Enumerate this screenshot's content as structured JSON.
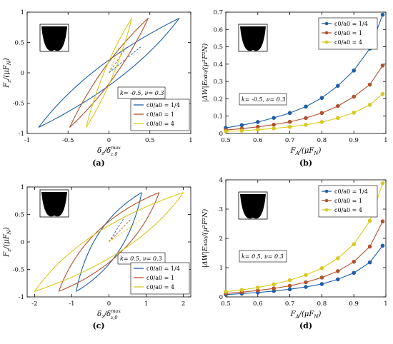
{
  "colors": {
    "blue": "#1f5fa8",
    "orange": "#b0522c",
    "yellow": "#d9c81f"
  },
  "chart_data": [
    {
      "id": "a",
      "panel_label": "(a)",
      "type": "line",
      "xlabel_main": "δ",
      "xlabel_sub": "z",
      "xlabel_after": "/δ",
      "xlabel_sup": "max",
      "xlabel_sub2": "z,0",
      "ylabel_main": "F",
      "ylabel_sub": "z",
      "ylabel_after": "/(μF",
      "ylabel_sub2": "N",
      "ylabel_end": ")",
      "xlim": [
        -1,
        1
      ],
      "ylim": [
        -1,
        1
      ],
      "xticks": [
        -1,
        -0.5,
        0,
        0.5,
        1
      ],
      "xtick_labels": [
        "-1",
        "-0.5",
        "0",
        "0.5",
        "1"
      ],
      "yticks": [
        -1,
        -0.5,
        0,
        0.5,
        1
      ],
      "ytick_labels": [
        "-1",
        "-0.5",
        "0",
        "0.5",
        "1"
      ],
      "annotation": "k= -0.5, ν= 0.3",
      "legend_position": "bottom-right",
      "series": [
        {
          "name": "c0/a0 = 1/4",
          "color": "blue",
          "amp_x": 0.86,
          "amp_y": 0.9,
          "delta_x": 0.14,
          "delta_y": 0.07,
          "loading": [
            [
              -0.86,
              -0.9
            ],
            [
              -0.5,
              -0.61
            ],
            [
              0,
              -0.2
            ],
            [
              0.5,
              0.36
            ],
            [
              0.86,
              0.9
            ]
          ],
          "unloading": [
            [
              0.86,
              0.9
            ],
            [
              0.5,
              0.64
            ],
            [
              0,
              0.24
            ],
            [
              -0.5,
              -0.34
            ],
            [
              -0.86,
              -0.9
            ]
          ]
        },
        {
          "name": "c0/a0 = 1",
          "color": "orange",
          "amp_x": 0.48,
          "amp_y": 0.9,
          "delta_x": 0.06,
          "delta_y": 0.07,
          "loading": [
            [
              -0.48,
              -0.9
            ],
            [
              -0.25,
              -0.52
            ],
            [
              0,
              -0.08
            ],
            [
              0.25,
              0.4
            ],
            [
              0.48,
              0.9
            ]
          ],
          "unloading": [
            [
              0.48,
              0.9
            ],
            [
              0.25,
              0.56
            ],
            [
              0,
              0.1
            ],
            [
              -0.25,
              -0.38
            ],
            [
              -0.48,
              -0.9
            ]
          ]
        },
        {
          "name": "c0/a0 = 4",
          "color": "yellow",
          "amp_x": 0.28,
          "amp_y": 0.9,
          "delta_x": 0.04,
          "delta_y": 0.07,
          "loading": [
            [
              -0.28,
              -0.9
            ],
            [
              -0.14,
              -0.48
            ],
            [
              0,
              -0.02
            ],
            [
              0.14,
              0.44
            ],
            [
              0.28,
              0.9
            ]
          ],
          "unloading": [
            [
              0.28,
              0.9
            ],
            [
              0.14,
              0.5
            ],
            [
              0,
              0.04
            ],
            [
              -0.14,
              -0.42
            ],
            [
              -0.28,
              -0.9
            ]
          ]
        }
      ]
    },
    {
      "id": "b",
      "panel_label": "(b)",
      "type": "line",
      "xlabel_main": "F",
      "xlabel_sub": "A",
      "xlabel_after": "/(μF",
      "xlabel_sub2": "N",
      "xlabel_end": ")",
      "ylabel_text": "|ΔW|E₀a₀/(μ²F²N)",
      "xlim": [
        0.5,
        1
      ],
      "ylim": [
        0,
        0.7
      ],
      "xticks": [
        0.5,
        0.6,
        0.7,
        0.8,
        0.9,
        1
      ],
      "xtick_labels": [
        "0.5",
        "0.6",
        "0.7",
        "0.8",
        "0.9",
        "1"
      ],
      "yticks": [
        0,
        0.1,
        0.2,
        0.3,
        0.4,
        0.5,
        0.6,
        0.7
      ],
      "ytick_labels": [
        "0",
        "0.1",
        "0.2",
        "0.3",
        "0.4",
        "0.5",
        "0.6",
        "0.7"
      ],
      "annotation": "k= -0.5, ν= 0.3",
      "legend_position": "top-right",
      "x": [
        0.5,
        0.55,
        0.6,
        0.65,
        0.7,
        0.75,
        0.8,
        0.85,
        0.9,
        0.95,
        0.99
      ],
      "series": [
        {
          "name": "c0/a0 = 1/4",
          "color": "blue",
          "values": [
            0.032,
            0.048,
            0.066,
            0.09,
            0.118,
            0.155,
            0.205,
            0.275,
            0.363,
            0.49,
            0.685
          ]
        },
        {
          "name": "c0/a0 = 1",
          "color": "orange",
          "values": [
            0.02,
            0.028,
            0.038,
            0.051,
            0.067,
            0.089,
            0.118,
            0.158,
            0.212,
            0.282,
            0.392
          ]
        },
        {
          "name": "c0/a0 = 4",
          "color": "yellow",
          "values": [
            0.012,
            0.016,
            0.022,
            0.029,
            0.038,
            0.05,
            0.066,
            0.089,
            0.12,
            0.165,
            0.228
          ]
        }
      ]
    },
    {
      "id": "c",
      "panel_label": "(c)",
      "type": "line",
      "xlabel_main": "δ",
      "xlabel_sub": "z",
      "xlabel_after": "/δ",
      "xlabel_sup": "max",
      "xlabel_sub2": "z,0",
      "ylabel_main": "F",
      "ylabel_sub": "z",
      "ylabel_after": "/(μF",
      "ylabel_sub2": "N",
      "ylabel_end": ")",
      "xlim": [
        -2.2,
        2.2
      ],
      "ylim": [
        -1,
        1
      ],
      "xticks": [
        -2,
        -1,
        0,
        1,
        2
      ],
      "xtick_labels": [
        "-2",
        "-1",
        "0",
        "1",
        "2"
      ],
      "yticks": [
        -1,
        -0.5,
        0,
        0.5,
        1
      ],
      "ytick_labels": [
        "-1",
        "-0.5",
        "0",
        "0.5",
        "1"
      ],
      "annotation": "k= 0.5, ν= 0.3",
      "legend_position": "bottom-right",
      "series": [
        {
          "name": "c0/a0 = 1/4",
          "color": "blue",
          "amp_x": 0.88,
          "amp_y": 0.9,
          "delta_x": 0.26,
          "delta_y": 0.17,
          "loading": [
            [
              -0.88,
              -0.9
            ],
            [
              -0.5,
              -0.72
            ],
            [
              0,
              -0.35
            ],
            [
              0.5,
              0.22
            ],
            [
              0.88,
              0.9
            ]
          ],
          "unloading": [
            [
              0.88,
              0.9
            ],
            [
              0.5,
              0.72
            ],
            [
              0,
              0.35
            ],
            [
              -0.5,
              -0.22
            ],
            [
              -0.88,
              -0.9
            ]
          ]
        },
        {
          "name": "c0/a0 = 1",
          "color": "orange",
          "amp_x": 1.35,
          "amp_y": 0.9,
          "delta_x": 0.34,
          "delta_y": 0.17,
          "loading": [
            [
              -1.35,
              -0.9
            ],
            [
              -0.7,
              -0.6
            ],
            [
              0,
              -0.22
            ],
            [
              0.7,
              0.3
            ],
            [
              1.35,
              0.9
            ]
          ],
          "unloading": [
            [
              1.35,
              0.9
            ],
            [
              0.7,
              0.6
            ],
            [
              0,
              0.22
            ],
            [
              -0.7,
              -0.3
            ],
            [
              -1.35,
              -0.9
            ]
          ]
        },
        {
          "name": "c0/a0 = 4",
          "color": "yellow",
          "amp_x": 2.0,
          "amp_y": 0.9,
          "delta_x": 0.4,
          "delta_y": 0.13,
          "loading": [
            [
              -2.0,
              -0.9
            ],
            [
              -1.0,
              -0.55
            ],
            [
              0,
              -0.15
            ],
            [
              1.0,
              0.32
            ],
            [
              2.0,
              0.9
            ]
          ],
          "unloading": [
            [
              2.0,
              0.9
            ],
            [
              1.0,
              0.55
            ],
            [
              0,
              0.15
            ],
            [
              -1.0,
              -0.32
            ],
            [
              -2.0,
              -0.9
            ]
          ]
        }
      ]
    },
    {
      "id": "d",
      "panel_label": "(d)",
      "type": "line",
      "xlabel_main": "F",
      "xlabel_sub": "A",
      "xlabel_after": "/(μF",
      "xlabel_sub2": "N",
      "xlabel_end": ")",
      "ylabel_text": "|ΔW|E₀a₀/(μ²F²N)",
      "xlim": [
        0.5,
        1
      ],
      "ylim": [
        0,
        4
      ],
      "xticks": [
        0.5,
        0.6,
        0.7,
        0.8,
        0.9,
        1
      ],
      "xtick_labels": [
        "0.5",
        "0.6",
        "0.7",
        "0.8",
        "0.9",
        "1"
      ],
      "yticks": [
        0,
        1,
        2,
        3,
        4
      ],
      "ytick_labels": [
        "0",
        "1",
        "2",
        "3",
        "4"
      ],
      "annotation": "k= 0.5, ν= 0.3",
      "legend_position": "top-right",
      "x": [
        0.5,
        0.55,
        0.6,
        0.65,
        0.7,
        0.75,
        0.8,
        0.85,
        0.9,
        0.95,
        0.99
      ],
      "series": [
        {
          "name": "c0/a0 = 1/4",
          "color": "blue",
          "values": [
            0.08,
            0.11,
            0.15,
            0.2,
            0.26,
            0.34,
            0.44,
            0.6,
            0.82,
            1.18,
            1.75
          ]
        },
        {
          "name": "c0/a0 = 1",
          "color": "orange",
          "values": [
            0.12,
            0.16,
            0.22,
            0.29,
            0.38,
            0.5,
            0.66,
            0.88,
            1.2,
            1.72,
            2.58
          ]
        },
        {
          "name": "c0/a0 = 4",
          "color": "yellow",
          "values": [
            0.18,
            0.24,
            0.32,
            0.43,
            0.57,
            0.75,
            0.98,
            1.32,
            1.8,
            2.6,
            3.88
          ]
        }
      ]
    }
  ]
}
